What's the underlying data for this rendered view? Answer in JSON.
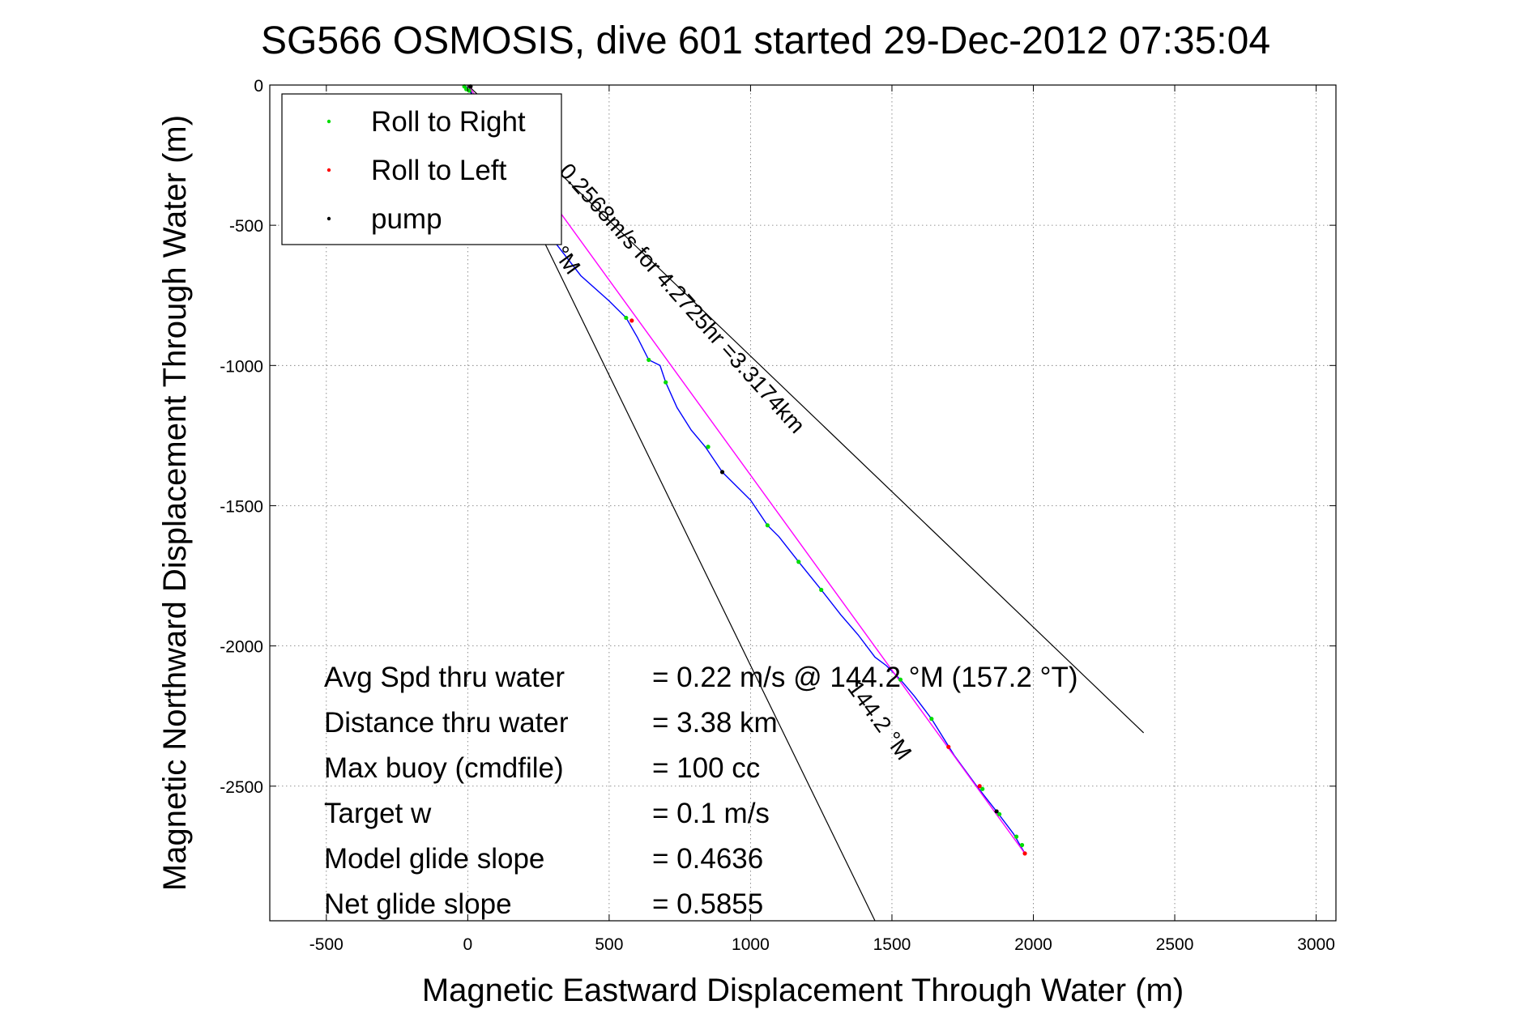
{
  "chart_data": {
    "type": "scatter",
    "title": "SG566 OSMOSIS, dive 601 started 29-Dec-2012 07:35:04",
    "xlabel": "Magnetic Eastward Displacement Through Water (m)",
    "ylabel": "Magnetic Northward Displacement Through Water (m)",
    "xlim": [
      -700,
      3070
    ],
    "ylim": [
      -2980,
      0
    ],
    "xticks": [
      -500,
      0,
      500,
      1000,
      1500,
      2000,
      2500,
      3000
    ],
    "yticks": [
      0,
      -500,
      -1000,
      -1500,
      -2000,
      -2500
    ],
    "grid": true,
    "legend": {
      "placement": "top-left",
      "entries": [
        {
          "label": "Roll to Right",
          "color": "#00dd00"
        },
        {
          "label": "Roll to Left",
          "color": "#ff0000"
        },
        {
          "label": "pump",
          "color": "#000000"
        }
      ]
    },
    "series": [
      {
        "name": "track",
        "style": "line",
        "color": "#0000ff",
        "x": [
          -10,
          20,
          80,
          180,
          300,
          400,
          500,
          560,
          600,
          640,
          680,
          700,
          740,
          790,
          840,
          900,
          940,
          1000,
          1060,
          1100,
          1170,
          1250,
          1320,
          1380,
          1440,
          1480,
          1530,
          1580,
          1640,
          1720,
          1800,
          1870,
          1930,
          1970
        ],
        "y": [
          0,
          -40,
          -170,
          -330,
          -550,
          -680,
          -770,
          -830,
          -900,
          -980,
          -1000,
          -1060,
          -1150,
          -1230,
          -1290,
          -1380,
          -1420,
          -1480,
          -1570,
          -1610,
          -1700,
          -1800,
          -1890,
          -1960,
          -2040,
          -2070,
          -2120,
          -2180,
          -2260,
          -2390,
          -2500,
          -2590,
          -2670,
          -2740
        ]
      },
      {
        "name": "heading",
        "style": "line",
        "color": "#ff00ff",
        "x": [
          0,
          1970
        ],
        "y": [
          0,
          -2740
        ]
      },
      {
        "name": "Roll to Right",
        "style": "points",
        "color": "#00dd00",
        "x": [
          -12,
          -5,
          5,
          300,
          560,
          640,
          700,
          850,
          1060,
          1170,
          1250,
          1530,
          1640,
          1820,
          1880,
          1940,
          1960
        ],
        "y": [
          -5,
          -15,
          -20,
          -550,
          -830,
          -980,
          -1060,
          -1290,
          -1570,
          -1700,
          -1800,
          -2120,
          -2260,
          -2510,
          -2600,
          -2680,
          -2710
        ]
      },
      {
        "name": "Roll to Left",
        "style": "points",
        "color": "#ff0000",
        "x": [
          580,
          1700,
          1810,
          1970
        ],
        "y": [
          -840,
          -2360,
          -2500,
          -2740
        ]
      },
      {
        "name": "pump",
        "style": "points",
        "color": "#000000",
        "x": [
          10,
          900,
          1870
        ],
        "y": [
          -5,
          -1380,
          -2590
        ]
      }
    ],
    "reference_lines": [
      {
        "x": [
          0,
          1440
        ],
        "y": [
          0,
          -2980
        ],
        "color": "#000000"
      },
      {
        "x": [
          0,
          2390
        ],
        "y": [
          0,
          -2310
        ],
        "color": "#000000"
      }
    ],
    "track_labels": [
      {
        "text": "0.2568m/s for 4.2725hr =3.3174km",
        "x": 320,
        "y": -310,
        "angle": 48
      },
      {
        "text": "144.2 °M",
        "x": 1340,
        "y": -2150,
        "angle": 54
      },
      {
        "text": "°M",
        "x": 300,
        "y": -600,
        "angle": 54
      }
    ],
    "annotations": [
      {
        "label": "Avg Spd thru water",
        "value": "=  0.22 m/s @ 144.2 °M (157.2 °T)"
      },
      {
        "label": "Distance thru water",
        "value": "=  3.38 km"
      },
      {
        "label": "Max buoy (cmdfile)",
        "value": "= 100 cc"
      },
      {
        "label": "Target w",
        "value": "= 0.1 m/s"
      },
      {
        "label": "Model glide slope",
        "value": "= 0.4636"
      },
      {
        "label": "Net glide slope",
        "value": "= 0.5855"
      }
    ]
  }
}
